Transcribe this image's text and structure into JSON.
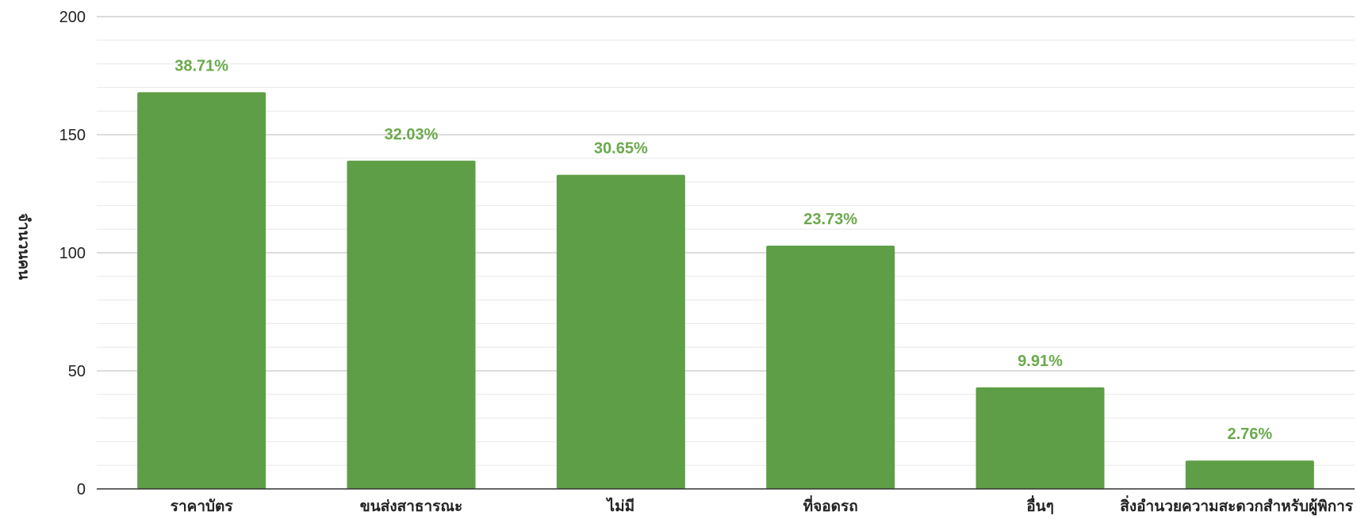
{
  "chart_data": {
    "type": "bar",
    "title": "",
    "xlabel": "",
    "ylabel": "จำนวนคน",
    "ylim": [
      0,
      200
    ],
    "yticks": [
      0,
      50,
      100,
      150,
      200
    ],
    "grid": true,
    "legend": "none",
    "categories": [
      "ราคาบัตร",
      "ขนส่งสาธารณะ",
      "ไม่มี",
      "ที่จอดรถ",
      "อื่นๆ",
      "สิ่งอำนวยความสะดวกสำหรับผู้พิการ"
    ],
    "values": [
      168,
      139,
      133,
      103,
      43,
      12
    ],
    "data_labels": [
      "38.71%",
      "32.03%",
      "30.65%",
      "23.73%",
      "9.91%",
      "2.76%"
    ],
    "colors": {
      "bar": "#5e9e46",
      "data_label": "#6aaa4c",
      "grid_major": "#d0d0d0",
      "grid_minor": "#e8e8e8",
      "axis": "#333333"
    }
  }
}
